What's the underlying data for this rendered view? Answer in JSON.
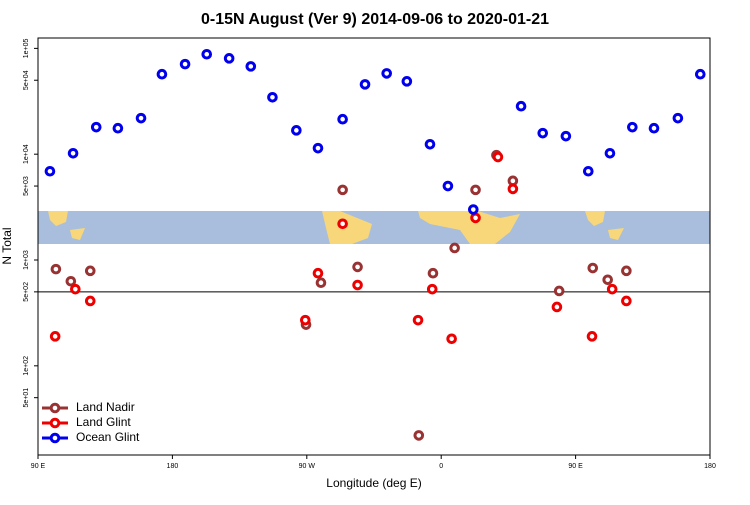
{
  "chart_data": {
    "type": "scatter",
    "title": "0-15N August (Ver 9)   2014-09-06 to 2020-01-21",
    "x_label": "Longitude (deg E)",
    "y_label": "N Total",
    "log_y": true,
    "legend": "bottom-left",
    "hline": 500,
    "xlim": [
      90,
      540
    ],
    "xticks": [
      {
        "value": 90,
        "label": "90 E"
      },
      {
        "value": 180,
        "label": "180"
      },
      {
        "value": 270,
        "label": "90 W"
      },
      {
        "value": 360,
        "label": "0"
      },
      {
        "value": 450,
        "label": "90 E"
      },
      {
        "value": 540,
        "label": "180"
      }
    ],
    "ylim": [
      15,
      120000
    ],
    "yticks": [
      {
        "value": 100000,
        "label": "1e+05"
      },
      {
        "value": 50000,
        "label": "5e+04"
      },
      {
        "value": 10000,
        "label": "1e+04"
      },
      {
        "value": 5000,
        "label": "5e+03"
      },
      {
        "value": 1000,
        "label": "1e+03"
      },
      {
        "value": 500,
        "label": "5e+02"
      },
      {
        "value": 100,
        "label": "1e+02"
      },
      {
        "value": 50,
        "label": "5e+01"
      }
    ],
    "series": [
      {
        "name": "Land Nadir",
        "color": "#993333",
        "x": [
          102,
          112,
          125,
          269.5,
          279.5,
          294,
          304,
          345,
          354.5,
          369,
          383,
          397,
          408,
          439,
          461.5,
          471.5,
          484
        ],
        "values": [
          820,
          630,
          790,
          245,
          610,
          4600,
          860,
          22,
          750,
          1300,
          4600,
          9800,
          5600,
          510,
          840,
          650,
          790
        ]
      },
      {
        "name": "Land Glint",
        "color": "#ee0000",
        "x": [
          101.5,
          115,
          125,
          269,
          277.5,
          294,
          304,
          344.5,
          354,
          367,
          383,
          398,
          408,
          437.5,
          461,
          474.5,
          484
        ],
        "values": [
          190,
          530,
          410,
          270,
          750,
          2200,
          580,
          270,
          530,
          180,
          2500,
          9400,
          4700,
          360,
          190,
          530,
          410
        ]
      },
      {
        "name": "Ocean Glint",
        "color": "#0000ee",
        "x": [
          98,
          113.5,
          129,
          143.5,
          159,
          173,
          188.5,
          203,
          218,
          232.5,
          247,
          263,
          277.5,
          294,
          309,
          323.5,
          337,
          352.5,
          364.5,
          381.5,
          413.5,
          428,
          443.5,
          458.5,
          473,
          488,
          502.5,
          518.5,
          533.5
        ],
        "values": [
          6900,
          10200,
          18000,
          17600,
          21900,
          57000,
          71000,
          88000,
          80500,
          67600,
          34500,
          16800,
          11400,
          21400,
          45700,
          58000,
          48800,
          12400,
          5000,
          3000,
          28400,
          15800,
          14800,
          6900,
          10200,
          18000,
          17600,
          21900,
          57000
        ]
      }
    ]
  }
}
